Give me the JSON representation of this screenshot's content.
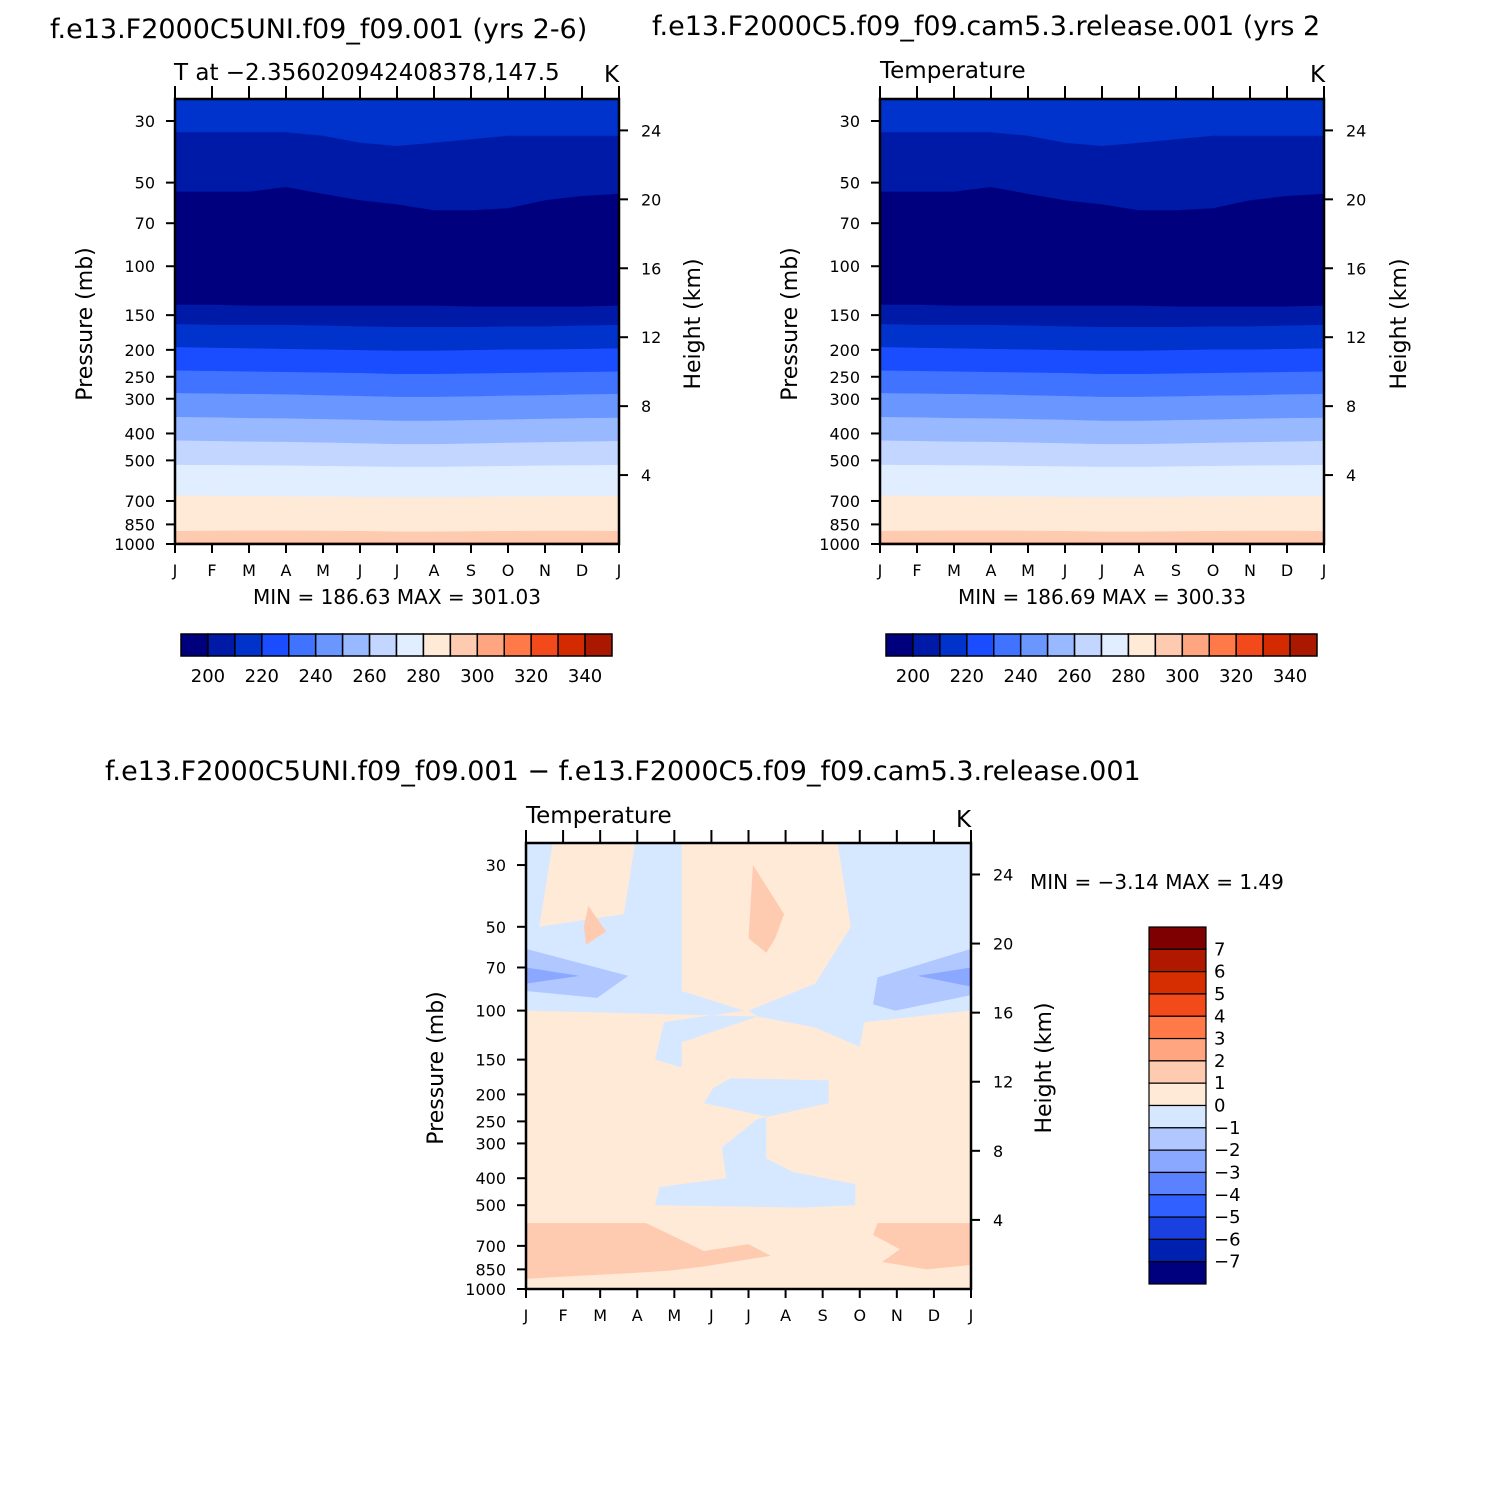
{
  "figure_titles": {
    "top_left": "f.e13.F2000C5UNI.f09_f09.001 (yrs 2-6)",
    "top_right": "f.e13.F2000C5.f09_f09.cam5.3.release.001 (yrs 2",
    "bottom": "f.e13.F2000C5UNI.f09_f09.001 − f.e13.F2000C5.f09_f09.cam5.3.release.001"
  },
  "chart_data": [
    {
      "type": "heatmap",
      "title": "f.e13.F2000C5UNI.f09_f09.001 (yrs 2-6)",
      "subtitle": "T at −2.35602094240837​8,147.5",
      "units": "K",
      "xlabel": "",
      "ylabel": "Pressure (mb)",
      "y2label": "Height (km)",
      "x_ticks": [
        "J",
        "F",
        "M",
        "A",
        "M",
        "J",
        "J",
        "A",
        "S",
        "O",
        "N",
        "D",
        "J"
      ],
      "y_ticks": [
        30,
        50,
        70,
        100,
        150,
        200,
        250,
        300,
        400,
        500,
        700,
        850,
        1000
      ],
      "y2_ticks": [
        24,
        20,
        16,
        12,
        8,
        4
      ],
      "stats_text": "MIN = 186.63 MAX = 301.03",
      "colorbar_labels": [
        200,
        220,
        240,
        260,
        280,
        300,
        320,
        340
      ],
      "bands_pressure_boundaries": [
        {
          "level_from": 200,
          "level_to": 210,
          "pressure": [
            54,
            54,
            54,
            52,
            55,
            58,
            60,
            63,
            63,
            62,
            58,
            56,
            55
          ]
        },
        {
          "level_from": 210,
          "level_to": 220,
          "pressure": [
            33,
            33,
            33,
            33,
            34,
            36,
            37,
            36,
            35,
            34,
            34,
            34,
            34
          ]
        },
        {
          "level_from": 180,
          "level_to": 190,
          "pressure": [
            138,
            138,
            139,
            139,
            139,
            139,
            139,
            139,
            140,
            140,
            140,
            140,
            139
          ]
        },
        {
          "level_from": 190,
          "level_to": 200,
          "pressure": [
            162,
            163,
            163,
            163,
            164,
            165,
            166,
            166,
            166,
            165,
            165,
            164,
            163
          ]
        },
        {
          "level_from": 200,
          "level_to": 210,
          "pressure": [
            196,
            197,
            198,
            199,
            200,
            201,
            202,
            202,
            201,
            200,
            200,
            199,
            198
          ]
        },
        {
          "level_from": 210,
          "level_to": 220,
          "pressure": [
            238,
            239,
            240,
            241,
            242,
            243,
            245,
            245,
            244,
            243,
            242,
            241,
            240
          ]
        },
        {
          "level_from": 220,
          "level_to": 230,
          "pressure": [
            287,
            288,
            289,
            290,
            292,
            294,
            296,
            296,
            295,
            293,
            292,
            290,
            289
          ]
        },
        {
          "level_from": 230,
          "level_to": 240,
          "pressure": [
            350,
            351,
            353,
            354,
            356,
            358,
            361,
            361,
            359,
            357,
            355,
            353,
            352
          ]
        },
        {
          "level_from": 240,
          "level_to": 250,
          "pressure": [
            425,
            427,
            429,
            430,
            432,
            435,
            438,
            438,
            436,
            433,
            431,
            429,
            427
          ]
        },
        {
          "level_from": 250,
          "level_to": 260,
          "pressure": [
            520,
            521,
            522,
            523,
            525,
            527,
            529,
            529,
            527,
            525,
            523,
            522,
            521
          ]
        },
        {
          "level_from": 260,
          "level_to": 270,
          "pressure": [
            670,
            672,
            674,
            675,
            676,
            678,
            680,
            680,
            678,
            676,
            675,
            674,
            672
          ]
        },
        {
          "level_from": 270,
          "level_to": 280,
          "pressure": [
            900,
            898,
            896,
            896,
            898,
            900,
            904,
            904,
            902,
            900,
            898,
            898,
            900
          ]
        }
      ]
    },
    {
      "type": "heatmap",
      "title": "f.e13.F2000C5.f09_f09.cam5.3.release.001 (yrs 2",
      "subtitle": "Temperature",
      "units": "K",
      "xlabel": "",
      "ylabel": "Pressure (mb)",
      "y2label": "Height (km)",
      "x_ticks": [
        "J",
        "F",
        "M",
        "A",
        "M",
        "J",
        "J",
        "A",
        "S",
        "O",
        "N",
        "D",
        "J"
      ],
      "y_ticks": [
        30,
        50,
        70,
        100,
        150,
        200,
        250,
        300,
        400,
        500,
        700,
        850,
        1000
      ],
      "y2_ticks": [
        24,
        20,
        16,
        12,
        8,
        4
      ],
      "stats_text": "MIN = 186.69 MAX = 300.33",
      "colorbar_labels": [
        200,
        220,
        240,
        260,
        280,
        300,
        320,
        340
      ]
    },
    {
      "type": "heatmap",
      "title": "f.e13.F2000C5UNI.f09_f09.001 − f.e13.F2000C5.f09_f09.cam5.3.release.001",
      "subtitle": "Temperature",
      "units": "K",
      "xlabel": "",
      "ylabel": "Pressure (mb)",
      "y2label": "Height (km)",
      "x_ticks": [
        "J",
        "F",
        "M",
        "A",
        "M",
        "J",
        "J",
        "A",
        "S",
        "O",
        "N",
        "D",
        "J"
      ],
      "y_ticks": [
        30,
        50,
        70,
        100,
        150,
        200,
        250,
        300,
        400,
        500,
        700,
        850,
        1000
      ],
      "y2_ticks": [
        24,
        20,
        16,
        12,
        8,
        4
      ],
      "stats_text": "MIN =   −3.14 MAX =    1.49",
      "colorbar_labels": [
        7,
        6,
        5,
        4,
        3,
        2,
        1,
        0,
        "−1",
        "−2",
        "−3",
        "−4",
        "−5",
        "−6",
        "−7"
      ]
    }
  ],
  "colors": {
    "abs_scale": [
      "#00007f",
      "#001aa8",
      "#0033cc",
      "#1a4dff",
      "#4073ff",
      "#6a96ff",
      "#98b8ff",
      "#c2d6ff",
      "#e0eeff",
      "#ffead8",
      "#ffcbb0",
      "#ffa680",
      "#ff7a48",
      "#f24a1a",
      "#d42a00",
      "#aa1800",
      "#7f0000"
    ],
    "diff_scale": [
      "#7f0000",
      "#b01800",
      "#d62e00",
      "#f24a1a",
      "#ff7a48",
      "#ffa680",
      "#ffcbb0",
      "#ffead8",
      "#d6e8ff",
      "#b0c8ff",
      "#8aa8ff",
      "#5a82ff",
      "#3060ff",
      "#1a40e0",
      "#0020b0",
      "#00007f"
    ]
  }
}
